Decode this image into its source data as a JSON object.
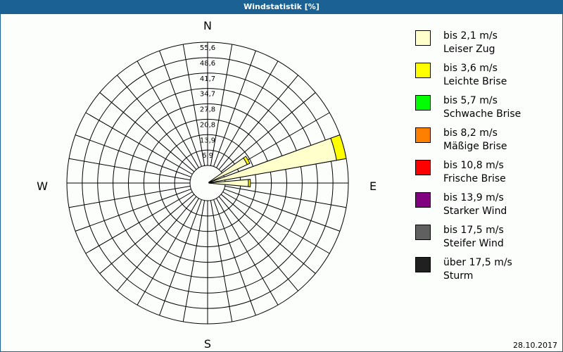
{
  "window": {
    "title": "Windstatistik [%]",
    "date": "28.10.2017"
  },
  "chart_data": {
    "type": "wind-rose",
    "title": "Windstatistik [%]",
    "directions": {
      "n": "N",
      "e": "E",
      "s": "S",
      "w": "W"
    },
    "radial_ticks": [
      "6,9",
      "13,9",
      "20,8",
      "27,8",
      "34,7",
      "41,7",
      "48,6",
      "55,6"
    ],
    "rmax": 55.6,
    "sector_width_deg": 10,
    "grid": true,
    "legend_position": "right",
    "classes": [
      {
        "range": "bis 2,1 m/s",
        "name": "Leiser Zug",
        "color": "#ffffcc"
      },
      {
        "range": "bis 3,6 m/s",
        "name": "Leichte Brise",
        "color": "#ffff00"
      },
      {
        "range": "bis 5,7 m/s",
        "name": "Schwache Brise",
        "color": "#00ff00"
      },
      {
        "range": "bis 8,2 m/s",
        "name": "Mäßige Brise",
        "color": "#ff8000"
      },
      {
        "range": "bis 10,8 m/s",
        "name": "Frische Brise",
        "color": "#ff0000"
      },
      {
        "range": "bis 13,9 m/s",
        "name": "Starker Wind",
        "color": "#800080"
      },
      {
        "range": "bis 17,5 m/s",
        "name": "Steifer Wind",
        "color": "#606060"
      },
      {
        "range": "über 17,5 m/s",
        "name": "Sturm",
        "color": "#202020"
      }
    ],
    "sectors": [
      {
        "direction_deg": 60,
        "values": [
          11.8,
          1.3,
          0,
          0,
          0,
          0,
          0,
          0
        ]
      },
      {
        "direction_deg": 75,
        "values": [
          51.2,
          4.4,
          0,
          0,
          0,
          0,
          0,
          0
        ]
      },
      {
        "direction_deg": 90,
        "values": [
          10.5,
          0.9,
          0,
          0,
          0,
          0,
          0,
          0
        ]
      }
    ]
  }
}
